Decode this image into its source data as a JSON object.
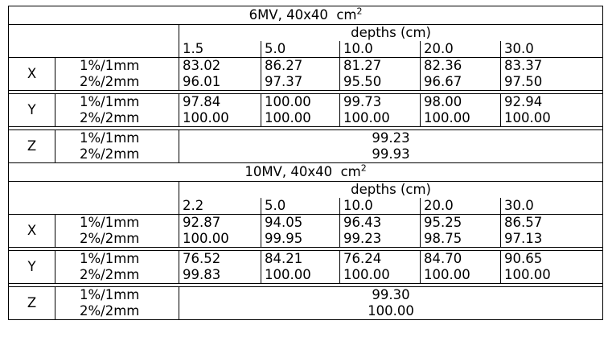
{
  "blocks": [
    {
      "title": "6MV, 40x40",
      "unit": "cm",
      "unit_sup": "2",
      "depths_label": "depths (cm)",
      "depths": [
        "1.5",
        "5.0",
        "10.0",
        "20.0",
        "30.0"
      ],
      "axes": [
        {
          "axis": "X",
          "rows": [
            {
              "criterion": "1%/1mm",
              "values": [
                "83.02",
                "86.27",
                "81.27",
                "82.36",
                "83.37"
              ]
            },
            {
              "criterion": "2%/2mm",
              "values": [
                "96.01",
                "97.37",
                "95.50",
                "96.67",
                "97.50"
              ]
            }
          ]
        },
        {
          "axis": "Y",
          "rows": [
            {
              "criterion": "1%/1mm",
              "values": [
                "97.84",
                "100.00",
                "99.73",
                "98.00",
                "92.94"
              ]
            },
            {
              "criterion": "2%/2mm",
              "values": [
                "100.00",
                "100.00",
                "100.00",
                "100.00",
                "100.00"
              ]
            }
          ]
        },
        {
          "axis": "Z",
          "rows": [
            {
              "criterion": "1%/1mm",
              "value": "99.23"
            },
            {
              "criterion": "2%/2mm",
              "value": "99.93"
            }
          ]
        }
      ]
    },
    {
      "title": "10MV, 40x40",
      "unit": "cm",
      "unit_sup": "2",
      "depths_label": "depths (cm)",
      "depths": [
        "2.2",
        "5.0",
        "10.0",
        "20.0",
        "30.0"
      ],
      "axes": [
        {
          "axis": "X",
          "rows": [
            {
              "criterion": "1%/1mm",
              "values": [
                "92.87",
                "94.05",
                "96.43",
                "95.25",
                "86.57"
              ]
            },
            {
              "criterion": "2%/2mm",
              "values": [
                "100.00",
                "99.95",
                "99.23",
                "98.75",
                "97.13"
              ]
            }
          ]
        },
        {
          "axis": "Y",
          "rows": [
            {
              "criterion": "1%/1mm",
              "values": [
                "76.52",
                "84.21",
                "76.24",
                "84.70",
                "90.65"
              ]
            },
            {
              "criterion": "2%/2mm",
              "values": [
                "99.83",
                "100.00",
                "100.00",
                "100.00",
                "100.00"
              ]
            }
          ]
        },
        {
          "axis": "Z",
          "rows": [
            {
              "criterion": "1%/1mm",
              "value": "99.30"
            },
            {
              "criterion": "2%/2mm",
              "value": "100.00"
            }
          ]
        }
      ]
    }
  ]
}
